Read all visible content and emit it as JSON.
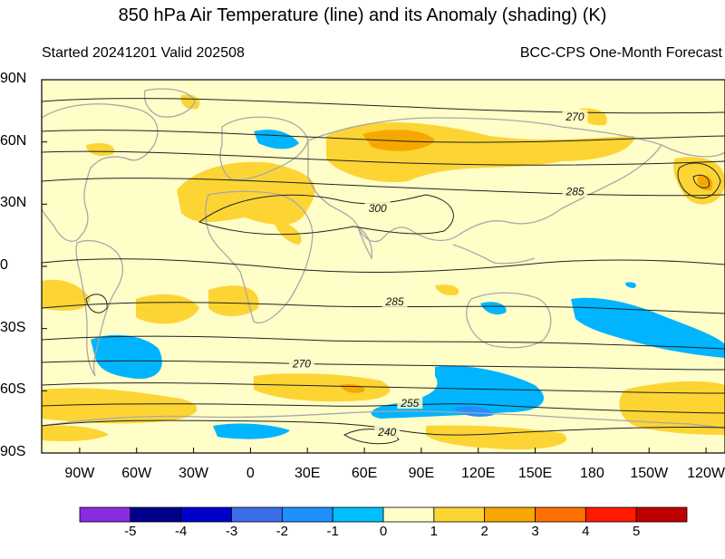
{
  "header": {
    "title": "850 hPa Air Temperature (line) and its Anomaly (shading) (K)",
    "left_subtitle": "Started 20241201  Valid 202508",
    "right_subtitle": "BCC-CPS One-Month Forecast"
  },
  "map": {
    "lat_labels": [
      "90N",
      "60N",
      "30N",
      "0",
      "30S",
      "60S",
      "90S"
    ],
    "lon_labels": [
      "90W",
      "60W",
      "30W",
      "0",
      "30E",
      "60E",
      "90E",
      "120E",
      "150E",
      "180",
      "150W",
      "120W"
    ],
    "contour_labels": [
      {
        "text": "270",
        "lon": 171,
        "lat": 72
      },
      {
        "text": "285",
        "lon": 171,
        "lat": 36
      },
      {
        "text": "300",
        "lon": 67,
        "lat": 28
      },
      {
        "text": "285",
        "lon": 76,
        "lat": -17
      },
      {
        "text": "270",
        "lon": 27,
        "lat": -47
      },
      {
        "text": "255",
        "lon": 84,
        "lat": -66
      },
      {
        "text": "240",
        "lon": 72,
        "lat": -80
      }
    ],
    "colors": {
      "background": "#fffdc8",
      "positive_1_2": "#fcd535",
      "positive_2_3": "#f7a800",
      "negative_0_1": "#00b4ff",
      "coast": "#a8a8a8",
      "contour": "#222222"
    }
  },
  "colorbar": {
    "labels": [
      "-5",
      "-4",
      "-3",
      "-2",
      "-1",
      "0",
      "1",
      "2",
      "3",
      "4",
      "5"
    ],
    "colors": [
      "#8a2be2",
      "#00008b",
      "#0000cd",
      "#3b6ee8",
      "#1e90ff",
      "#00bfff",
      "#fffdc8",
      "#fcd535",
      "#f7a800",
      "#ff7000",
      "#ff1a00",
      "#c00000"
    ]
  }
}
